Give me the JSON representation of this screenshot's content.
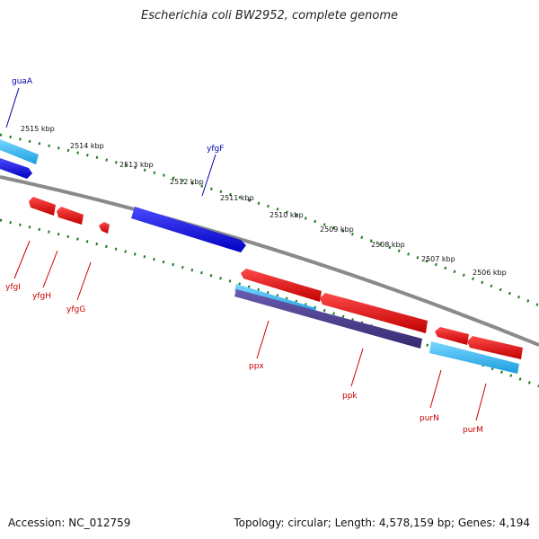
{
  "title": "Escherichia coli BW2952, complete genome",
  "footer": {
    "accession": "Accession: NC_012759",
    "topology": "Topology: circular; Length: 4,578,159 bp; Genes: 4,194"
  },
  "colors": {
    "backbone": "#8a8a8a",
    "tick": "#1f7a1f",
    "gene_forward": "#0000dd",
    "gene_reverse": "#e00000",
    "cds_forward": "#2ab0e8",
    "cds_reverse": "#4b3c8c",
    "label_forward": "#0000aa",
    "label_reverse": "#cc0000"
  },
  "scale_labels": [
    "2515 kbp",
    "2514 kbp",
    "2513 kbp",
    "2512 kbp",
    "2511 kbp",
    "2510 kbp",
    "2509 kbp",
    "2508 kbp",
    "2507 kbp",
    "2506 kbp"
  ],
  "gene_labels": {
    "forward": [
      "guaA",
      "yfgF"
    ],
    "reverse": [
      "yfgI",
      "yfgH",
      "yfgG",
      "ppx",
      "ppk",
      "purN",
      "purM"
    ]
  }
}
